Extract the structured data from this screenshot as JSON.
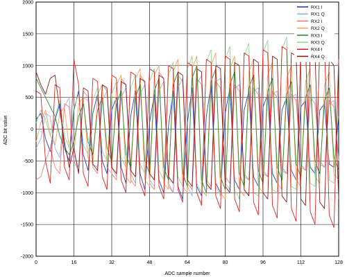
{
  "chart_data": {
    "type": "line",
    "xlabel": "ADC sample number",
    "ylabel": "ADC bit value",
    "xlim": [
      0,
      128
    ],
    "ylim": [
      -2000,
      2000
    ],
    "x_ticks": [
      0,
      16,
      32,
      48,
      64,
      80,
      96,
      112,
      128
    ],
    "y_ticks": [
      -2000,
      -1500,
      -1000,
      -500,
      0,
      500,
      1000,
      1500,
      2000
    ],
    "grid": true,
    "legend_position": "top-right",
    "x": [
      0,
      2,
      4,
      6,
      8,
      10,
      12,
      14,
      16,
      18,
      20,
      22,
      24,
      26,
      28,
      30,
      32,
      34,
      36,
      38,
      40,
      42,
      44,
      46,
      48,
      50,
      52,
      54,
      56,
      58,
      60,
      62,
      64,
      66,
      68,
      70,
      72,
      74,
      76,
      78,
      80,
      82,
      84,
      86,
      88,
      90,
      92,
      94,
      96,
      98,
      100,
      102,
      104,
      106,
      108,
      110,
      112,
      114,
      116,
      118,
      120,
      122,
      124,
      126,
      128
    ],
    "series": [
      {
        "name": "RX1 I",
        "color": "#1f3fbf",
        "values": [
          150,
          250,
          -150,
          -350,
          150,
          400,
          -300,
          -500,
          300,
          600,
          -400,
          -650,
          250,
          550,
          -500,
          -700,
          300,
          500,
          -600,
          -850,
          200,
          600,
          -700,
          -950,
          100,
          550,
          -800,
          -1000,
          50,
          600,
          -900,
          -1100,
          100,
          650,
          -900,
          -1050,
          200,
          700,
          -850,
          -1000,
          250,
          650,
          -800,
          -950,
          300,
          600,
          -750,
          -900,
          350,
          550,
          -700,
          -850,
          300,
          500,
          -650,
          -800,
          350,
          450,
          -600,
          -700,
          300,
          400,
          -550,
          -600,
          200
        ]
      },
      {
        "name": "RX1 Q",
        "color": "#9ab0e8",
        "values": [
          -300,
          -150,
          250,
          200,
          -300,
          -450,
          350,
          500,
          -400,
          -600,
          500,
          450,
          -550,
          -600,
          450,
          600,
          -600,
          -750,
          500,
          650,
          -700,
          -850,
          550,
          700,
          -800,
          -900,
          600,
          750,
          -850,
          -1000,
          650,
          800,
          -900,
          -1050,
          700,
          850,
          -950,
          -900,
          750,
          800,
          -850,
          -950,
          650,
          700,
          -750,
          -800,
          600,
          650,
          -700,
          -750,
          550,
          600,
          -650,
          -700,
          500,
          550,
          -600,
          -650,
          450,
          500,
          -550,
          -600,
          400,
          450,
          -500
        ]
      },
      {
        "name": "RX2 I",
        "color": "#e88080",
        "values": [
          -800,
          -750,
          -500,
          -300,
          -600,
          -700,
          400,
          350,
          -500,
          -650,
          600,
          500,
          -600,
          -700,
          700,
          600,
          -700,
          -800,
          800,
          700,
          -800,
          -900,
          850,
          750,
          -850,
          -950,
          900,
          800,
          -900,
          -1000,
          850,
          750,
          -850,
          -950,
          800,
          700,
          -800,
          -900,
          750,
          650,
          -750,
          -850,
          700,
          600,
          -700,
          -800,
          650,
          550,
          -650,
          -750,
          600,
          500,
          -600,
          -700,
          550,
          450,
          -550,
          -650,
          500,
          400,
          -500,
          -600,
          450,
          350,
          -450
        ]
      },
      {
        "name": "RX2 Q",
        "color": "#f5a060",
        "values": [
          -200,
          100,
          300,
          -100,
          -250,
          250,
          350,
          -300,
          -400,
          400,
          500,
          -450,
          -550,
          550,
          700,
          -600,
          -700,
          700,
          850,
          -750,
          -850,
          800,
          950,
          -800,
          -900,
          850,
          1000,
          -850,
          -950,
          900,
          1100,
          -900,
          -1000,
          950,
          1150,
          -950,
          -1050,
          1000,
          1200,
          -1000,
          -1100,
          950,
          1150,
          -950,
          -1050,
          900,
          1100,
          -900,
          -1000,
          850,
          1050,
          -850,
          -950,
          800,
          1000,
          -800,
          -900,
          750,
          950,
          -750,
          -850,
          700,
          900,
          -700,
          -800
        ]
      },
      {
        "name": "RX3 I",
        "color": "#2e8b2e",
        "values": [
          800,
          650,
          500,
          350,
          200,
          -100,
          -300,
          -400,
          -200,
          200,
          400,
          -200,
          -400,
          300,
          500,
          -300,
          -500,
          400,
          600,
          -400,
          -600,
          500,
          700,
          -500,
          -700,
          600,
          800,
          -600,
          -800,
          700,
          900,
          -700,
          -900,
          800,
          1000,
          -800,
          -1000,
          750,
          950,
          -750,
          -950,
          700,
          900,
          -700,
          -900,
          650,
          850,
          -650,
          -850,
          600,
          800,
          -600,
          -800,
          550,
          750,
          -550,
          -750,
          500,
          700,
          -500,
          -700,
          450,
          650,
          -450,
          -650
        ]
      },
      {
        "name": "RX3 Q",
        "color": "#90d890",
        "values": [
          100,
          300,
          150,
          -100,
          200,
          450,
          -100,
          -300,
          350,
          550,
          -250,
          -400,
          450,
          650,
          -350,
          -500,
          550,
          750,
          -450,
          -600,
          650,
          850,
          -550,
          -700,
          750,
          950,
          -650,
          -800,
          850,
          1050,
          -750,
          -900,
          950,
          1150,
          -850,
          -1000,
          1050,
          1250,
          -900,
          -1050,
          1100,
          1300,
          -950,
          -1100,
          1150,
          1350,
          -1000,
          -1050,
          1200,
          1400,
          -950,
          -1000,
          1250,
          1450,
          -900,
          -950,
          1200,
          1400,
          -850,
          -900,
          1150,
          1300,
          -800,
          -850,
          1100
        ]
      },
      {
        "name": "RX4 I",
        "color": "#e02020",
        "values": [
          600,
          550,
          -500,
          -850,
          700,
          650,
          -600,
          -800,
          1100,
          700,
          -700,
          -900,
          800,
          750,
          -750,
          -950,
          850,
          800,
          -800,
          -1000,
          900,
          850,
          -850,
          -1050,
          950,
          900,
          -900,
          -1100,
          1000,
          950,
          -950,
          -1150,
          1050,
          1000,
          -1000,
          -1200,
          1100,
          1050,
          -1050,
          -1250,
          1150,
          1100,
          -1100,
          -1300,
          1200,
          1150,
          -1150,
          -1350,
          1250,
          1200,
          -1200,
          -1400,
          1300,
          1250,
          -1250,
          -1450,
          1350,
          1300,
          -1300,
          -1500,
          1400,
          1350,
          -1350,
          -1550,
          1100
        ]
      },
      {
        "name": "RX4 Q",
        "color": "#8b1a1a",
        "values": [
          900,
          700,
          550,
          800,
          850,
          300,
          -200,
          -600,
          -300,
          -700,
          650,
          600,
          -550,
          -650,
          700,
          650,
          -600,
          -700,
          750,
          700,
          -650,
          -750,
          800,
          750,
          -700,
          -800,
          850,
          800,
          -750,
          -850,
          900,
          850,
          -800,
          -900,
          950,
          900,
          -850,
          -950,
          1000,
          950,
          -900,
          -1000,
          1050,
          1000,
          -950,
          -1050,
          1100,
          1050,
          -1000,
          -1100,
          1150,
          1100,
          -1050,
          -1150,
          1200,
          1150,
          -1100,
          -1200,
          1250,
          1200,
          -1150,
          -1250,
          1100,
          1000,
          -1100
        ]
      }
    ]
  }
}
